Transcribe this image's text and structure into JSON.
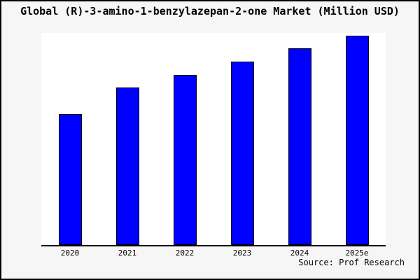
{
  "chart_data": {
    "type": "bar",
    "title": "Global (R)-3-amino-1-benzylazepan-2-one Market (Million USD)",
    "categories": [
      "2020",
      "2021",
      "2022",
      "2023",
      "2024",
      "2025e"
    ],
    "values": [
      100,
      120,
      130,
      140,
      150,
      160
    ],
    "values_note": "y-axis has no tick labels; values are relative index estimated from bar heights (2020 = 100)",
    "xlabel": "",
    "ylabel": "",
    "ylim": [
      0,
      162
    ],
    "grid": false,
    "legend": "none",
    "source": "Source: Prof Research",
    "colors": {
      "bar_fill": "#0000ff",
      "bar_border": "#000000",
      "plot_background": "#ffffff",
      "figure_background": "#f6f6f6",
      "figure_border": "#000000",
      "text": "#000000"
    }
  }
}
